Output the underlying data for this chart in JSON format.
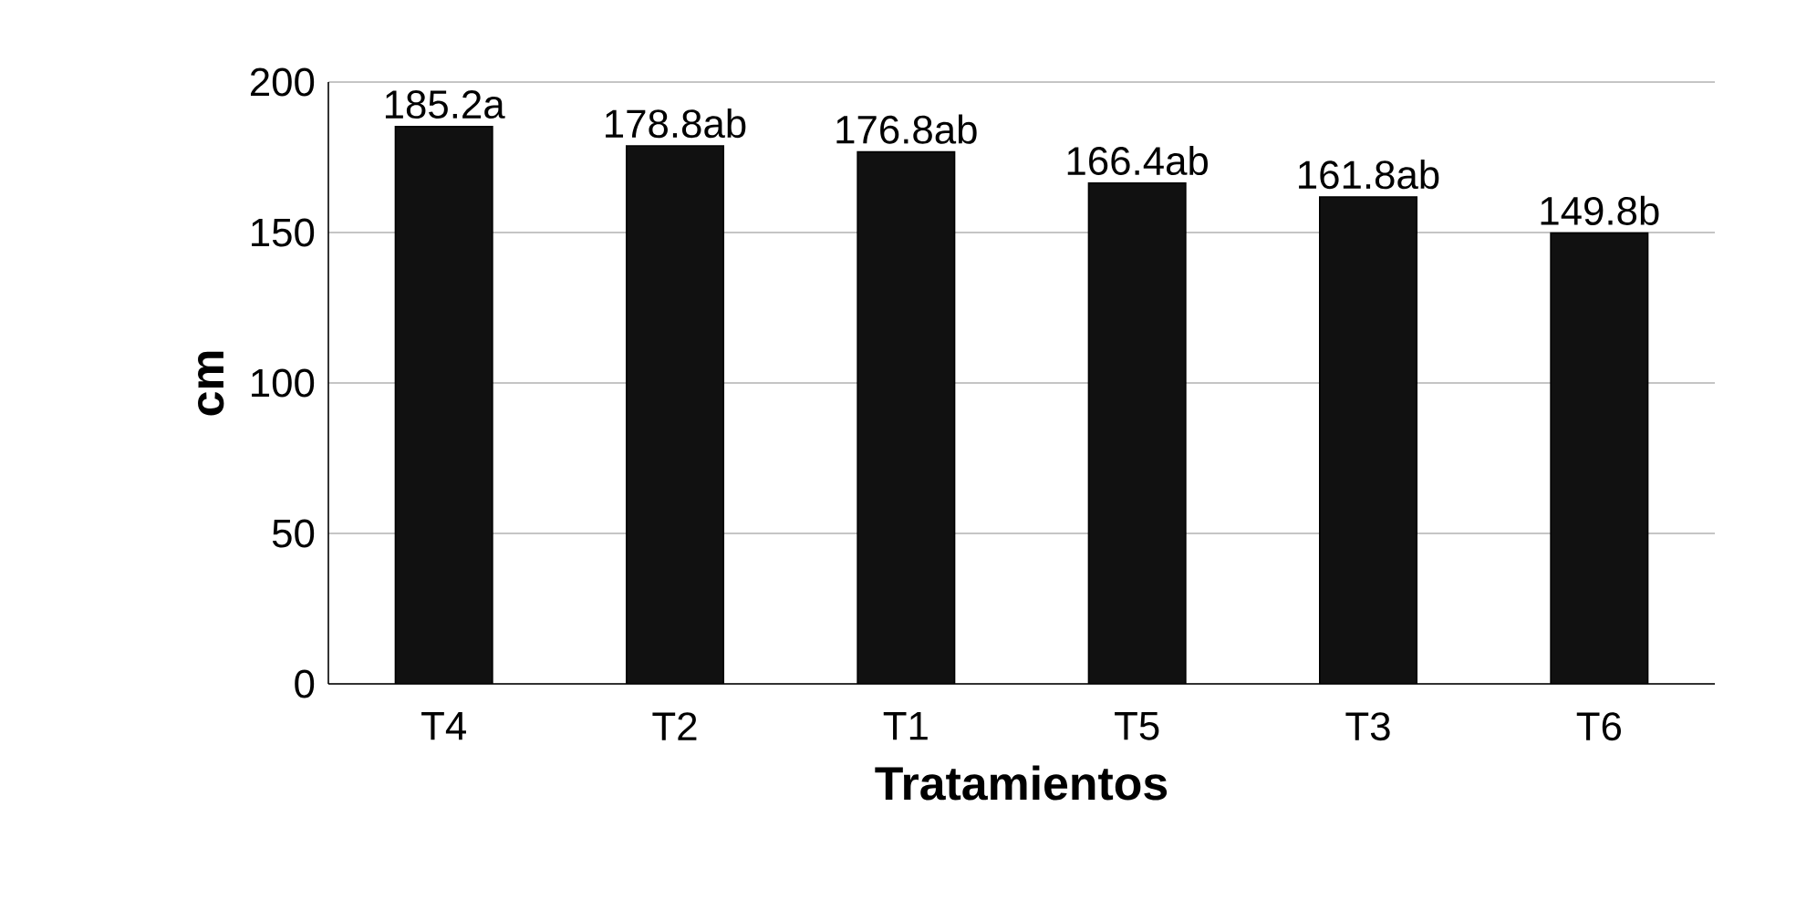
{
  "chart_data": {
    "type": "bar",
    "xlabel": "Tratamientos",
    "ylabel": "cm",
    "categories": [
      "T4",
      "T2",
      "T1",
      "T5",
      "T3",
      "T6"
    ],
    "values": [
      185.2,
      178.8,
      176.8,
      166.4,
      161.8,
      149.8
    ],
    "value_labels": [
      "185.2a",
      "178.8ab",
      "176.8ab",
      "166.4ab",
      "161.8ab",
      "149.8b"
    ],
    "color": "#111111",
    "ylim": [
      0,
      200
    ],
    "yticks": [
      0,
      50,
      100,
      150,
      200
    ],
    "grid": "y"
  }
}
